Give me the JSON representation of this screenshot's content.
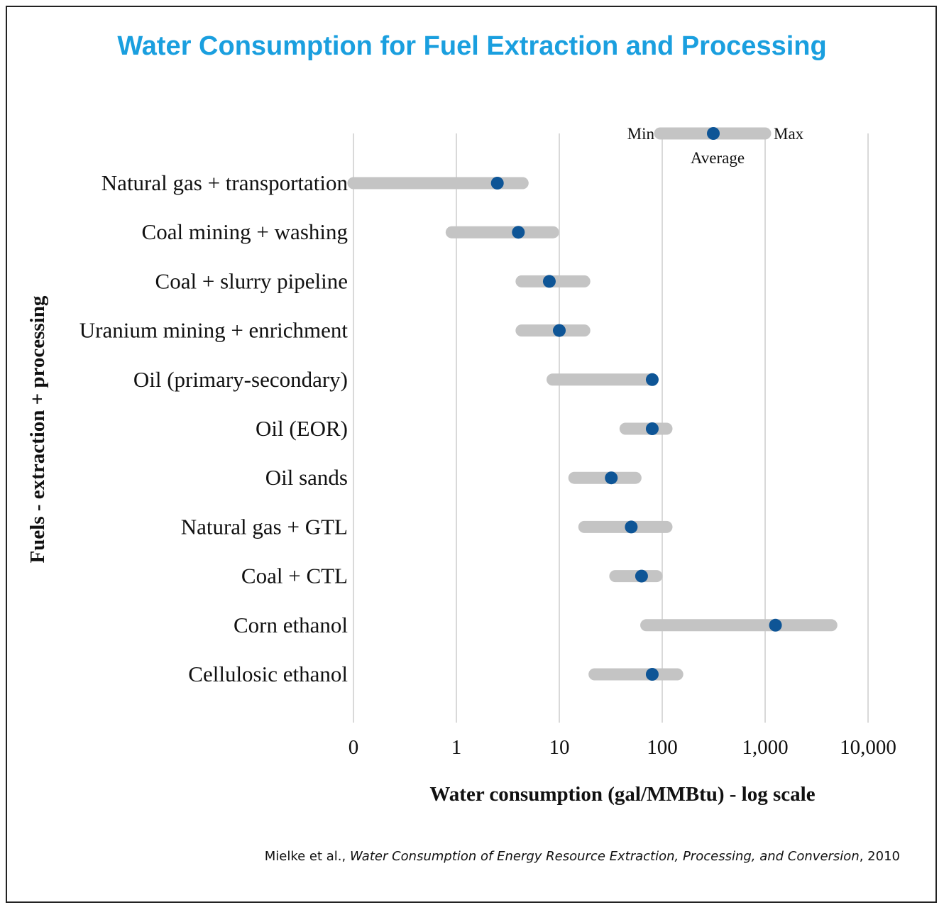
{
  "title": "Water Consumption for Fuel Extraction and Processing",
  "citation": {
    "authors": "Mielke et al.,",
    "work": "Water Consumption of Energy Resource Extraction, Processing, and Conversion",
    "year": ", 2010"
  },
  "colors": {
    "title": "#1a9fdf",
    "range_bar": "#c4c4c4",
    "average_dot": "#0e5596",
    "gridline": "#d9d9d9",
    "text": "#111111"
  },
  "legend": {
    "min_label": "Min",
    "max_label": "Max",
    "average_label": "Average",
    "placement": "top-right"
  },
  "chart_data": {
    "type": "range-dot",
    "scale": "log",
    "xlabel": "Water consumption (gal/MMBtu) - log scale",
    "ylabel": "Fuels - extraction + processing",
    "x_ticks": [
      {
        "value": 0.1,
        "label": "0"
      },
      {
        "value": 1,
        "label": "1"
      },
      {
        "value": 10,
        "label": "10"
      },
      {
        "value": 100,
        "label": "100"
      },
      {
        "value": 1000,
        "label": "1,000"
      },
      {
        "value": 10000,
        "label": "10,000"
      }
    ],
    "xlim": [
      0.1,
      10000
    ],
    "grid": true,
    "series": [
      {
        "category": "Natural gas + transportation",
        "min": 0.1,
        "avg": 2.5,
        "max": 4.4
      },
      {
        "category": "Coal mining + washing",
        "min": 0.9,
        "avg": 4,
        "max": 8.7
      },
      {
        "category": "Coal + slurry pipeline",
        "min": 4.3,
        "avg": 8,
        "max": 17.5
      },
      {
        "category": "Uranium mining + enrichment",
        "min": 4.3,
        "avg": 10,
        "max": 17.5
      },
      {
        "category": "Oil (primary-secondary)",
        "min": 8.6,
        "avg": 80,
        "max": 80
      },
      {
        "category": "Oil (EOR)",
        "min": 44,
        "avg": 80,
        "max": 110
      },
      {
        "category": "Oil sands",
        "min": 14,
        "avg": 32,
        "max": 55
      },
      {
        "category": "Natural gas + GTL",
        "min": 17.5,
        "avg": 50,
        "max": 110
      },
      {
        "category": "Coal + CTL",
        "min": 35,
        "avg": 63,
        "max": 88
      },
      {
        "category": "Corn ethanol",
        "min": 70,
        "avg": 1260,
        "max": 4400
      },
      {
        "category": "Cellulosic ethanol",
        "min": 22,
        "avg": 80,
        "max": 140
      }
    ]
  }
}
